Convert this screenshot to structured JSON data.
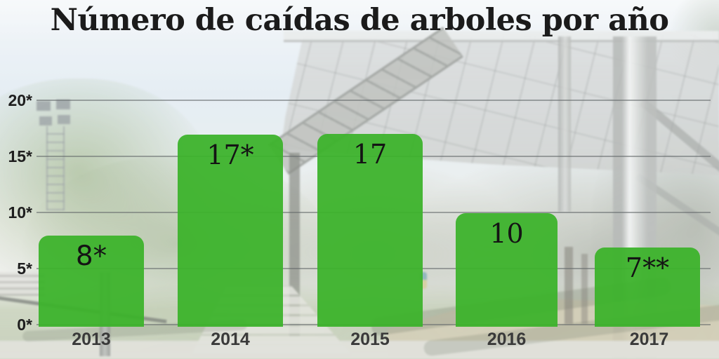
{
  "page": {
    "title": "Número de caídas de arboles por año"
  },
  "chart_data": {
    "type": "bar",
    "title": "Número de caídas de arboles por año",
    "categories": [
      "2013",
      "2014",
      "2015",
      "2016",
      "2017"
    ],
    "values": [
      8,
      17,
      17,
      10,
      7
    ],
    "bar_labels": [
      "8*",
      "17*",
      "17",
      "10",
      "7**"
    ],
    "xlabel": "",
    "ylabel": "",
    "ylim": [
      0,
      20
    ],
    "y_ticks": [
      0,
      5,
      10,
      15,
      20
    ],
    "y_tick_labels": [
      "0*",
      "5*",
      "10*",
      "15*",
      "20*"
    ],
    "grid": "horizontal",
    "legend": "none",
    "bar_color": "#3bb22a",
    "background_photo": "faded park scene with trees, floodlight tower, elevated metal walkway and paths"
  },
  "colors": {
    "bar": "#3bb22a",
    "title_text": "#1b1b1b",
    "axis_text": "#1e1e1e",
    "gridline": "#62676a"
  }
}
